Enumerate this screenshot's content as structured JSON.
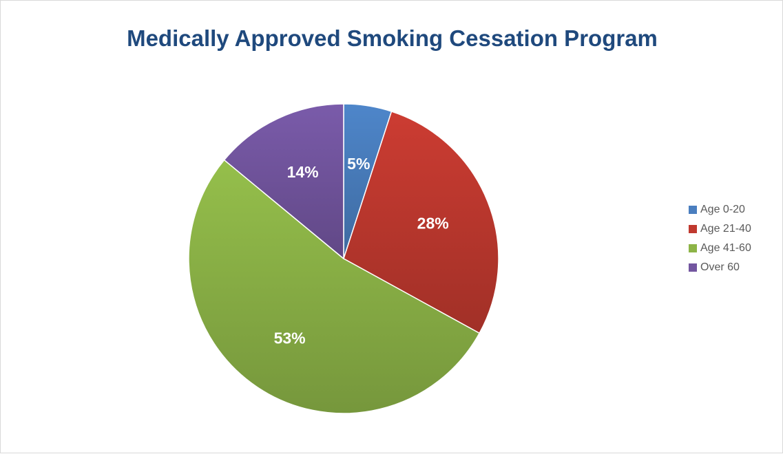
{
  "chart_data": {
    "type": "pie",
    "title": "Medically Approved Smoking Cessation Program",
    "categories": [
      "Age 0-20",
      "Age 21-40",
      "Age 41-60",
      "Over 60"
    ],
    "values": [
      5,
      28,
      53,
      14
    ],
    "data_labels": [
      "5%",
      "28%",
      "53%",
      "14%"
    ],
    "colors": [
      "#4a7ebf",
      "#c0392f",
      "#8db447",
      "#7356a0"
    ],
    "legend_position": "right",
    "start_angle": "12 o'clock, clockwise"
  }
}
